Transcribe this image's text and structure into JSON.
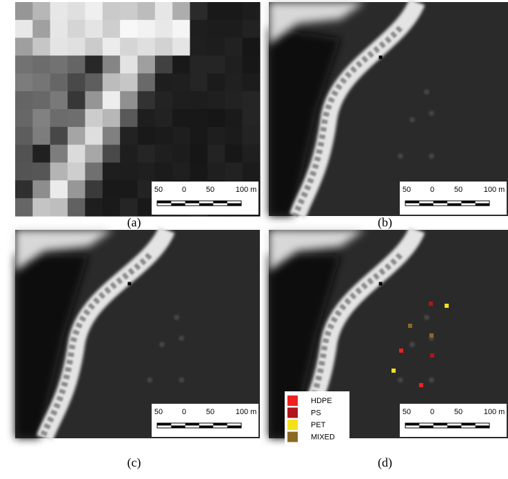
{
  "panels": [
    {
      "caption": "(a)"
    },
    {
      "caption": "(b)"
    },
    {
      "caption": "(c)"
    },
    {
      "caption": "(d)"
    }
  ],
  "scale_bar": {
    "labels": [
      "50",
      "0",
      "50",
      "100 m"
    ]
  },
  "legend": {
    "items": [
      {
        "label": "HDPE",
        "color": "#ee2020"
      },
      {
        "label": "PS",
        "color": "#b0141c"
      },
      {
        "label": "PET",
        "color": "#f2e21c"
      },
      {
        "label": "MIXED",
        "color": "#8c6a24"
      }
    ]
  }
}
